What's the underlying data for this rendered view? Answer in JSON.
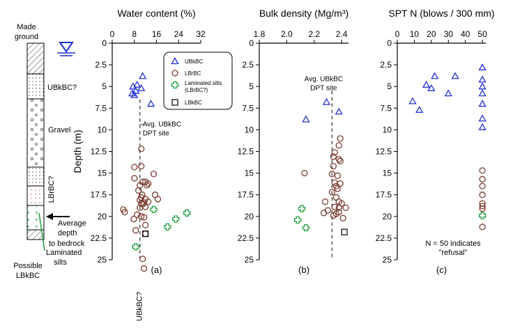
{
  "strata": {
    "labels": [
      "Made ground",
      "UBkBC?",
      "Gravel",
      "LBrBC?",
      "Average depth to bedrock",
      "Laminated silts",
      "Possible LBkBC"
    ],
    "bedrock_label_lines": [
      "Average",
      "depth",
      "to bedrock"
    ],
    "silts_label_lines": [
      "Laminated",
      "silts"
    ],
    "lbkbc_label_lines": [
      "Possible",
      "LBkBC"
    ],
    "made_ground_lines": [
      "Made",
      "ground"
    ],
    "gravel": "Gravel",
    "ubkbc": "UBkBC?",
    "lbrbc": "LBrBC?",
    "layers": [
      {
        "name": "made-ground",
        "top": 0,
        "bottom": 4.8
      },
      {
        "name": "ubkbc",
        "top": 4.8,
        "bottom": 8.5
      },
      {
        "name": "gravel",
        "top": 8.5,
        "bottom": 19.2
      },
      {
        "name": "lbrbc",
        "top": 19.2,
        "bottom": 24.0
      },
      {
        "name": "silts",
        "top": 24.0,
        "bottom": 28.5
      },
      {
        "name": "lbkbc",
        "top": 28.5,
        "bottom": 30.0
      }
    ]
  },
  "chart_data": [
    {
      "type": "scatter",
      "panel_label": "(a)",
      "title": "Water content (%)",
      "ylabel": "Depth (m)",
      "xlim": [
        0,
        32
      ],
      "ylim": [
        0,
        25
      ],
      "xticks": [
        0,
        8,
        16,
        24,
        32
      ],
      "yticks": [
        0,
        2.5,
        5,
        7.5,
        10,
        12.5,
        15,
        17.5,
        20,
        22.5,
        25
      ],
      "reference_line": {
        "x": 10,
        "y_from": 6.5,
        "y_to": 25,
        "label_lines": [
          "Avg. UBkBC",
          "DPT site"
        ],
        "label_depth": 9.6
      },
      "rotated_note": "UBkBC?",
      "legend": [
        "UBkBC",
        "LBrBC",
        "Laminated silts (LBrBC?)",
        "LBkBC"
      ],
      "series": [
        {
          "name": "UBkBC",
          "marker": "triangle",
          "color": "#1f2fd6",
          "x": [
            11,
            9,
            7.5,
            8.5,
            10.5,
            7.2,
            8,
            14
          ],
          "y": [
            3.8,
            4.8,
            5,
            5.5,
            5.2,
            5.8,
            6,
            7
          ]
        },
        {
          "name": "LBrBC",
          "marker": "circle",
          "color": "#7a3b2e",
          "x": [
            10.5,
            8,
            10.5,
            15,
            8,
            11,
            12,
            13,
            12.5,
            10,
            9.5,
            10.8,
            15.5,
            10.5,
            12,
            16.5,
            10,
            13,
            10.5,
            11,
            11.5,
            12,
            10,
            4,
            4.5,
            9,
            10.5,
            11.5,
            7.8,
            12,
            8.5,
            11,
            11.5,
            12
          ],
          "y": [
            12.2,
            14.3,
            14.2,
            15.1,
            15.6,
            16,
            16,
            16.2,
            16.4,
            16.4,
            17,
            17.5,
            17.5,
            17.8,
            18,
            18,
            18.1,
            18.3,
            18.5,
            18.6,
            18.4,
            18.9,
            19,
            19.2,
            19.5,
            19.8,
            20,
            20.1,
            20.3,
            21,
            21.6,
            24.9,
            26,
            22
          ]
        },
        {
          "name": "Laminated silts (LBrBC?)",
          "marker": "plus",
          "color": "#1e9e3e",
          "x": [
            15,
            20,
            23,
            27,
            8.5
          ],
          "y": [
            19.2,
            21.2,
            20.3,
            19.6,
            23.5
          ]
        },
        {
          "name": "LBkBC",
          "marker": "square",
          "color": "#111111",
          "x": [
            12
          ],
          "y": [
            22
          ]
        }
      ]
    },
    {
      "type": "scatter",
      "panel_label": "(b)",
      "title": "Bulk density (Mg/m³)",
      "xlim": [
        1.8,
        2.45
      ],
      "ylim": [
        0,
        25
      ],
      "xticks": [
        1.8,
        2.0,
        2.2,
        2.4
      ],
      "yticks": [
        0,
        2.5,
        5,
        7.5,
        10,
        12.5,
        15,
        17.5,
        20,
        22.5,
        25
      ],
      "reference_line": {
        "x": 2.33,
        "y_from": 5.5,
        "y_to": 25,
        "label_lines": [
          "Avg. UBkBC",
          "DPT site"
        ],
        "label_depth": 4.4
      },
      "series": [
        {
          "name": "UBkBC",
          "marker": "triangle",
          "color": "#1f2fd6",
          "x": [
            2.29,
            2.38,
            2.14
          ],
          "y": [
            6.8,
            7.9,
            8.8
          ]
        },
        {
          "name": "LBrBC",
          "marker": "circle",
          "color": "#7a3b2e",
          "x": [
            2.39,
            2.38,
            2.35,
            2.34,
            2.38,
            2.39,
            2.34,
            2.33,
            2.37,
            2.13,
            2.35,
            2.39,
            2.36,
            2.37,
            2.33,
            2.36,
            2.38,
            2.4,
            2.28,
            2.35,
            2.38,
            2.43,
            2.3,
            2.38,
            2.36,
            2.41,
            2.34,
            2.27
          ],
          "y": [
            11,
            11.8,
            12.6,
            13.1,
            13.4,
            13.6,
            14.2,
            15.1,
            15.3,
            15,
            16.1,
            16.2,
            16.5,
            16.8,
            17.2,
            17.8,
            18.3,
            18.5,
            18.3,
            18.9,
            19,
            19,
            19.3,
            19.5,
            19.7,
            20.2,
            19.9,
            19.6
          ]
        },
        {
          "name": "Laminated silts (LBrBC?)",
          "marker": "plus",
          "color": "#1e9e3e",
          "x": [
            2.11,
            2.08,
            2.14
          ],
          "y": [
            19.1,
            20.4,
            21.3
          ]
        },
        {
          "name": "LBkBC",
          "marker": "square",
          "color": "#111111",
          "x": [
            2.42
          ],
          "y": [
            21.8
          ]
        }
      ]
    },
    {
      "type": "scatter",
      "panel_label": "(c)",
      "title": "SPT N (blows / 300 mm)",
      "xlim": [
        0,
        52
      ],
      "ylim": [
        0,
        25
      ],
      "xticks": [
        0,
        10,
        20,
        30,
        40,
        50
      ],
      "yticks": [
        0,
        2.5,
        5,
        7.5,
        10,
        12.5,
        15,
        17.5,
        20,
        22.5,
        25
      ],
      "note_lines": [
        "N = 50 indicates",
        "\"refusal\""
      ],
      "series": [
        {
          "name": "UBkBC",
          "marker": "triangle",
          "color": "#1f2fd6",
          "x": [
            50,
            22,
            34,
            50,
            17,
            20,
            50,
            30,
            50,
            50,
            9,
            13,
            50,
            50
          ],
          "y": [
            2.8,
            3.8,
            3.8,
            4.2,
            4.8,
            5.2,
            5,
            5.8,
            5.8,
            7,
            6.7,
            7.7,
            8.7,
            9.7
          ]
        },
        {
          "name": "LBrBC",
          "marker": "circle",
          "color": "#7a3b2e",
          "x": [
            50,
            50,
            50,
            50,
            50,
            50,
            50,
            50
          ],
          "y": [
            14.7,
            15.7,
            16.5,
            17.5,
            18.5,
            18.8,
            19.1,
            21.2
          ]
        },
        {
          "name": "Laminated silts (LBrBC?)",
          "marker": "plus",
          "color": "#1e9e3e",
          "x": [
            50
          ],
          "y": [
            19.9
          ]
        }
      ]
    }
  ]
}
